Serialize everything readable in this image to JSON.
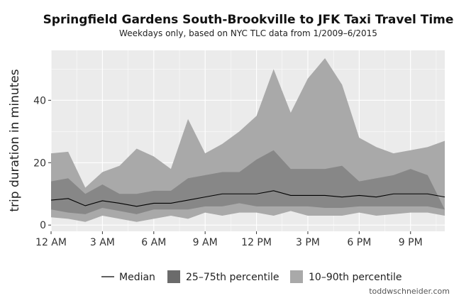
{
  "chart_data": {
    "type": "area",
    "title": "Springfield Gardens South-Brookville to JFK Taxi Travel Time",
    "subtitle": "Weekdays only, based on NYC TLC data from 1/2009–6/2015",
    "xlabel": "",
    "ylabel": "trip duration in minutes",
    "x": [
      0,
      1,
      2,
      3,
      4,
      5,
      6,
      7,
      8,
      9,
      10,
      11,
      12,
      13,
      14,
      15,
      16,
      17,
      18,
      19,
      20,
      21,
      22,
      23
    ],
    "x_ticks": [
      0,
      3,
      6,
      9,
      12,
      15,
      18,
      21
    ],
    "x_tick_labels": [
      "12 AM",
      "3 AM",
      "6 AM",
      "9 AM",
      "12 PM",
      "3 PM",
      "6 PM",
      "9 PM"
    ],
    "y_ticks": [
      0,
      20,
      40
    ],
    "y_tick_labels": [
      "0",
      "20",
      "40"
    ],
    "xlim": [
      0,
      23
    ],
    "ylim": [
      -2,
      56
    ],
    "grid": true,
    "legend_position": "bottom",
    "colors": {
      "panel_background": "#ebebeb",
      "grid": "#ffffff",
      "p10_90": "#a9a9a9",
      "p25_75": "#6b6b6b",
      "median": "#000000"
    },
    "series": [
      {
        "name": "Median",
        "kind": "line",
        "values": [
          8,
          8.5,
          6.2,
          7.8,
          7,
          6,
          7,
          7,
          8,
          9,
          10,
          10,
          10,
          11,
          9.5,
          9.5,
          9.5,
          9,
          9.5,
          9,
          10,
          10,
          10,
          9
        ]
      },
      {
        "name": "25–75th percentile",
        "kind": "band",
        "lower": [
          5,
          4,
          3.5,
          5.5,
          4.5,
          3.5,
          5,
          5,
          5,
          6,
          6,
          7,
          6,
          6,
          6,
          6,
          5.5,
          5.5,
          6,
          6,
          6,
          6,
          6,
          5
        ],
        "upper": [
          14,
          15,
          10,
          13,
          10,
          10,
          11,
          11,
          15,
          16,
          17,
          17,
          21,
          24,
          18,
          18,
          18,
          19,
          14,
          15,
          16,
          18,
          16,
          null
        ]
      },
      {
        "name": "10–90th percentile",
        "kind": "band",
        "lower": [
          2.5,
          2,
          1,
          3,
          2,
          1,
          2,
          3,
          2,
          4,
          3,
          4,
          4,
          3,
          4.5,
          3,
          3,
          3,
          4,
          3,
          3.5,
          4,
          4,
          3
        ],
        "upper": [
          23,
          23.5,
          12,
          17,
          19,
          24.5,
          22,
          18,
          34,
          23,
          26,
          30,
          35,
          50,
          36,
          47,
          53.5,
          45,
          28,
          25,
          23,
          24,
          25,
          27
        ]
      }
    ]
  },
  "credit": "toddwschneider.com"
}
